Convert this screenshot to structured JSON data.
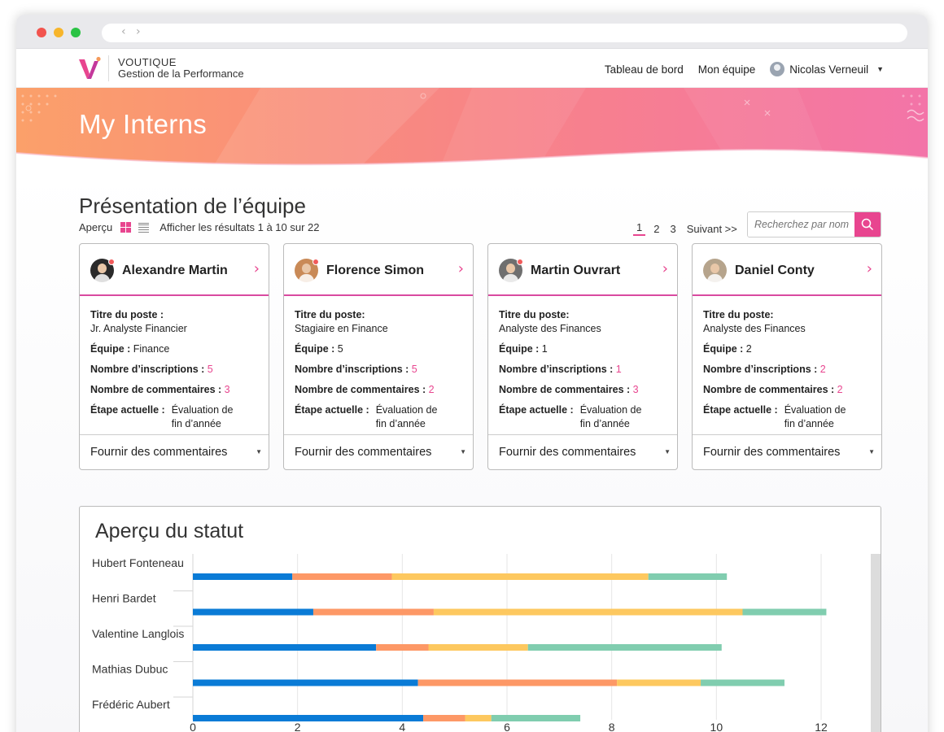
{
  "app": {
    "brand_line1": "VOUTIQUE",
    "brand_line2": "Gestion de la Performance"
  },
  "topnav": {
    "dashboard": "Tableau de bord",
    "team": "Mon équipe",
    "user": "Nicolas Verneuil"
  },
  "banner": {
    "title": "My Interns"
  },
  "section": {
    "title": "Présentation de l’équipe",
    "view_label": "Aperçu",
    "results": "Afficher les résultats 1 à 10 sur 22",
    "pages": [
      "1",
      "2",
      "3"
    ],
    "next": "Suivant >>",
    "search_placeholder": "Recherchez par nom"
  },
  "colors": {
    "accent": "#e8458f",
    "series": [
      "#0a7bd6",
      "#fd9866",
      "#fdc85f",
      "#80cdaf"
    ]
  },
  "labels": {
    "job": "Titre du poste :",
    "job_alt": "Titre du poste:",
    "team": "Équipe :",
    "signups": "Nombre d’inscriptions :",
    "comments": "Nombre de commentaires :",
    "stage": "Étape actuelle :",
    "feedback": "Fournir des commentaires"
  },
  "cards": [
    {
      "name": "Alexandre Martin",
      "job": "Jr. Analyste Financier",
      "team": "Finance",
      "signups": "5",
      "comments": "3",
      "stage": "Évaluation de fin d’année",
      "avatar_color": "#2a2a2a"
    },
    {
      "name": "Florence Simon",
      "job": "Stagiaire en Finance",
      "team": "5",
      "signups": "5",
      "comments": "2",
      "stage": "Évaluation de fin d’année",
      "avatar_color": "#c98a57"
    },
    {
      "name": "Martin Ouvrart",
      "job": "Analyste des Finances",
      "team": "1",
      "signups": "1",
      "comments": "3",
      "stage": "Évaluation de fin d’année",
      "avatar_color": "#6f6f6f"
    },
    {
      "name": "Daniel Conty",
      "job": "Analyste des Finances",
      "team": "2",
      "signups": "2",
      "comments": "2",
      "stage": "Évaluation de fin d’année",
      "avatar_color": "#b6a48c"
    }
  ],
  "chart": {
    "title": "Aperçu du statut"
  },
  "chart_data": {
    "type": "bar",
    "orientation": "horizontal",
    "stacked": true,
    "categories": [
      "Hubert Fonteneau",
      "Henri Bardet",
      "Valentine Langlois",
      "Mathias Dubuc",
      "Frédéric Aubert"
    ],
    "series": [
      {
        "values": [
          1.9,
          2.3,
          3.5,
          4.3,
          4.4
        ]
      },
      {
        "values": [
          1.9,
          2.3,
          1.0,
          3.8,
          0.8
        ]
      },
      {
        "values": [
          4.9,
          5.9,
          1.9,
          1.6,
          0.5
        ]
      },
      {
        "values": [
          1.5,
          1.6,
          3.7,
          1.6,
          1.7
        ]
      }
    ],
    "xlim": [
      0,
      12
    ],
    "xticks": [
      "0",
      "2",
      "4",
      "6",
      "8",
      "10",
      "12"
    ],
    "grid": true
  }
}
